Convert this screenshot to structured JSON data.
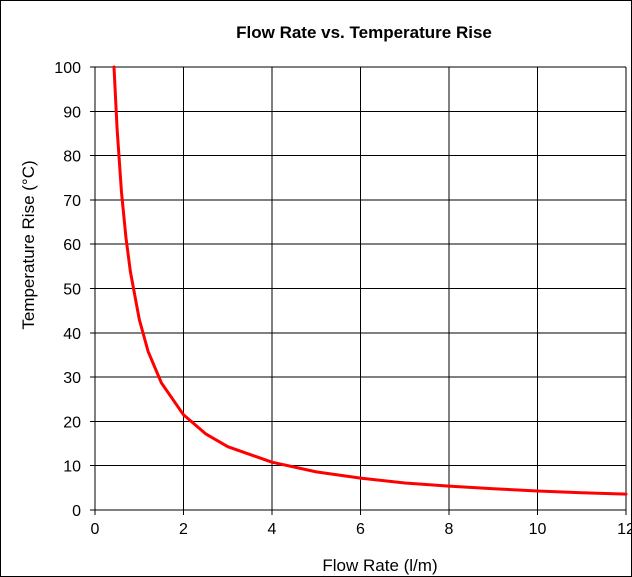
{
  "chart_data": {
    "type": "line",
    "title": "Flow Rate vs. Temperature Rise",
    "xlabel": "Flow Rate (l/m)",
    "ylabel": "Temperature Rise (°C)",
    "xlim": [
      0,
      12
    ],
    "ylim": [
      0,
      100
    ],
    "x_ticks": [
      "0",
      "2",
      "4",
      "6",
      "8",
      "10",
      "12"
    ],
    "y_ticks": [
      "0",
      "10",
      "20",
      "30",
      "40",
      "50",
      "60",
      "70",
      "80",
      "90",
      "100"
    ],
    "grid": true,
    "legend": "none",
    "series": [
      {
        "color": "#ff0000",
        "x": [
          0.43,
          0.5,
          0.6,
          0.7,
          0.8,
          1.0,
          1.2,
          1.5,
          2.0,
          2.5,
          3.0,
          4.0,
          5.0,
          6.0,
          7.0,
          8.0,
          9.0,
          10.0,
          11.0,
          12.0
        ],
        "y": [
          100,
          86,
          71.7,
          61.4,
          53.8,
          43,
          35.8,
          28.7,
          21.5,
          17.2,
          14.3,
          10.8,
          8.6,
          7.2,
          6.1,
          5.4,
          4.8,
          4.3,
          3.9,
          3.6
        ]
      }
    ]
  }
}
